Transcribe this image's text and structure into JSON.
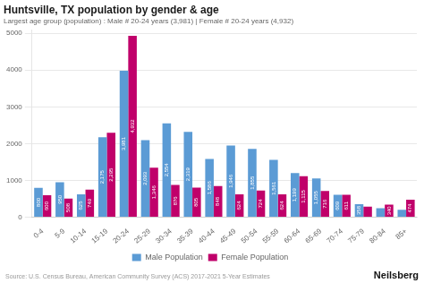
{
  "chart_data": {
    "type": "bar",
    "title": "Huntsville, TX population by gender & age",
    "subtitle": "Largest age group (population) : Male # 20-24 years (3,981) | Female # 20-24 years (4,932)",
    "categories": [
      "0-4",
      "5-9",
      "10-14",
      "15-19",
      "20-24",
      "25-29",
      "30-34",
      "35-39",
      "40-44",
      "45-49",
      "50-54",
      "55-59",
      "60-64",
      "65-69",
      "70-74",
      "75-79",
      "80-84",
      "85+"
    ],
    "series": [
      {
        "name": "Male Population",
        "color": "#5B9BD5",
        "values": [
          800,
          950,
          625,
          2175,
          3981,
          2093,
          2554,
          2319,
          1586,
          1946,
          1855,
          1561,
          1199,
          1055,
          609,
          358,
          248,
          202
        ],
        "value_labels": [
          "800",
          "950",
          "625",
          "2,175",
          "3,981",
          "2,093",
          "2,554",
          "2,319",
          "1,586",
          "1,946",
          "1,855",
          "1,561",
          "1,199",
          "1,055",
          "609",
          "358",
          null,
          null
        ]
      },
      {
        "name": "Female Population",
        "color": "#C0006A",
        "values": [
          600,
          508,
          749,
          2295,
          4932,
          1346,
          876,
          805,
          848,
          624,
          724,
          624,
          1115,
          716,
          611,
          290,
          340,
          474
        ],
        "value_labels": [
          "600",
          "508",
          "749",
          "2,295",
          "4,932",
          "1,346",
          "876",
          "805",
          "848",
          "624",
          "724",
          "624",
          "1,115",
          "716",
          "611",
          null,
          "340",
          "474"
        ]
      }
    ],
    "ylim": [
      0,
      5100
    ],
    "yticks": [
      0,
      1000,
      2000,
      3000,
      4000,
      5000
    ],
    "grid": true,
    "legend": "bottom",
    "data_labels": true,
    "annotations": [
      "Source: U.S. Census Bureau, American Community Survey (ACS) 2017-2021 5-Year Estimates",
      "Neilsberg"
    ]
  }
}
